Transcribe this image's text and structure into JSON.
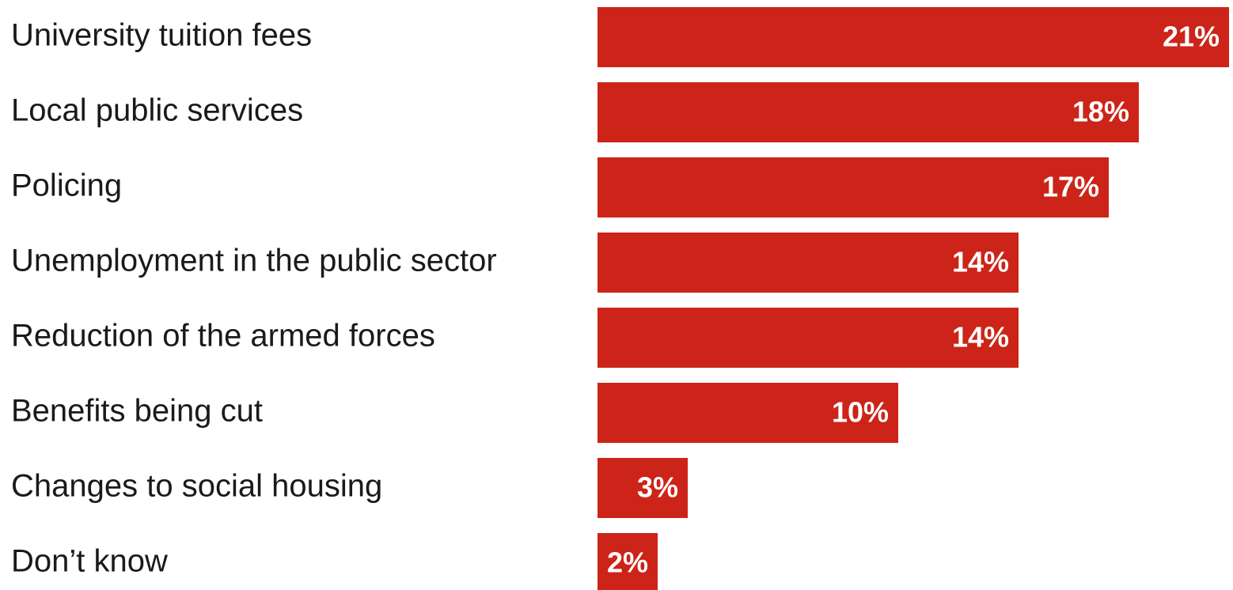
{
  "chart_data": {
    "type": "bar",
    "orientation": "horizontal",
    "categories": [
      "University tuition fees",
      "Local public services",
      "Policing",
      "Unemployment in the public sector",
      "Reduction of the armed forces",
      "Benefits being cut",
      "Changes to social housing",
      "Don’t know"
    ],
    "values": [
      21,
      18,
      17,
      14,
      14,
      10,
      3,
      2
    ],
    "value_labels": [
      "21%",
      "18%",
      "17%",
      "14%",
      "14%",
      "10%",
      "3%",
      "2%"
    ],
    "unit": "%",
    "title": "",
    "xlabel": "",
    "ylabel": "",
    "xlim": [
      0,
      21
    ],
    "grid": false,
    "legend": "none",
    "bar_color": "#cc2418",
    "label_color": "#ffffff"
  }
}
